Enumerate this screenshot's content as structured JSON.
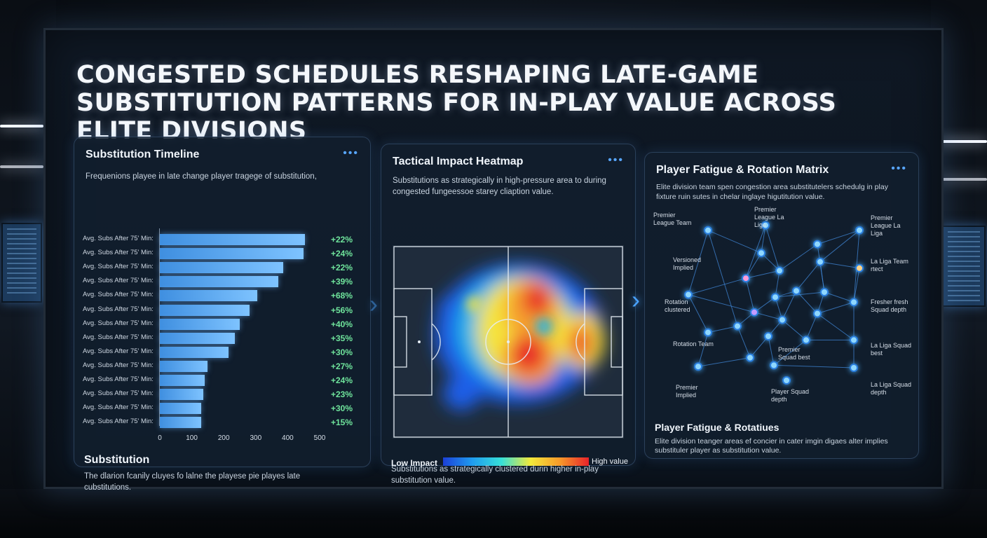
{
  "headline": "CONGESTED SCHEDULES RESHAPING LATE-GAME SUBSTITUTION PATTERNS FOR IN-PLAY VALUE ACROSS ELITE DIVISIONS",
  "panel_menu": "•••",
  "timeline": {
    "title": "Substitution Timeline",
    "subtitle": "Frequenions playee in late change player tragege of substitution,",
    "foot_title": "Substitution",
    "foot_text": "The dlarion fcanily cluyes fo lalne the playese pie playes late cubstitutions.",
    "chart_data": {
      "type": "bar",
      "orientation": "horizontal",
      "categories": [
        "Avg. Subs After 75' Min:",
        "Avg. Subs After 75' Min:",
        "Avg. Subs After 75' Min:",
        "Avg. Subs After 75' Min:",
        "Avg. Subs After 75' Min:",
        "Avg. Subs After 75' Min:",
        "Avg. Subs After 75' Min:",
        "Avg. Subs After 75' Min:",
        "Avg. Subs After 75' Min:",
        "Avg. Subs After 75' Min:",
        "Avg. Subs After 75' Min:",
        "Avg. Subs After 75' Min:",
        "Avg. Subs After 75' Min:",
        "Avg. Subs After 75' Min:"
      ],
      "values": [
        455,
        450,
        385,
        370,
        305,
        280,
        250,
        235,
        215,
        150,
        140,
        135,
        130,
        130
      ],
      "annotations": [
        "+22%",
        "+24%",
        "+22%",
        "+39%",
        "+68%",
        "+56%",
        "+40%",
        "+35%",
        "+30%",
        "+27%",
        "+24%",
        "+23%",
        "+30%",
        "+15%"
      ],
      "xticks": [
        "0",
        "100",
        "200",
        "300",
        "400",
        "500"
      ],
      "xlim": [
        0,
        500
      ]
    }
  },
  "heatmap": {
    "title": "Tactical Impact Heatmap",
    "subtitle": "Substitutions as strategically in high-pressure area to during congested fungeessoe starey cliaption value.",
    "legend_low": "Low Impact",
    "legend_high": "High value",
    "foot_text": "Substitutions as strategically clustered durin higher in-play substitution value.",
    "colors": {
      "low": "#1b40d8",
      "mid": "#f2e93a",
      "high": "#e8232a"
    }
  },
  "fatigue": {
    "title": "Player Fatigue & Rotation Matrix",
    "subtitle": "Elite division team spen congestion area substitutelers schedulg in play fixture ruin sutes in chelar inglaye higutitution value.",
    "foot_title": "Player Fatigue & Rotatiues",
    "foot_text": "Elite division teanger areas ef concier in cater imgin digaes alter implies substituler player as substitution value.",
    "labels": [
      "Premier League Team",
      "Premier League La Liga",
      "Premier League La Liga",
      "Versioned Implied",
      "La Liga Team rtect",
      "Rotation clustered",
      "Fresher fresh Squad depth",
      "Rotation Team",
      "La Liga Squad best",
      "Premier Squad best",
      "Premier Implied",
      "Player Squad depth",
      "La Liga Squad depth"
    ]
  }
}
